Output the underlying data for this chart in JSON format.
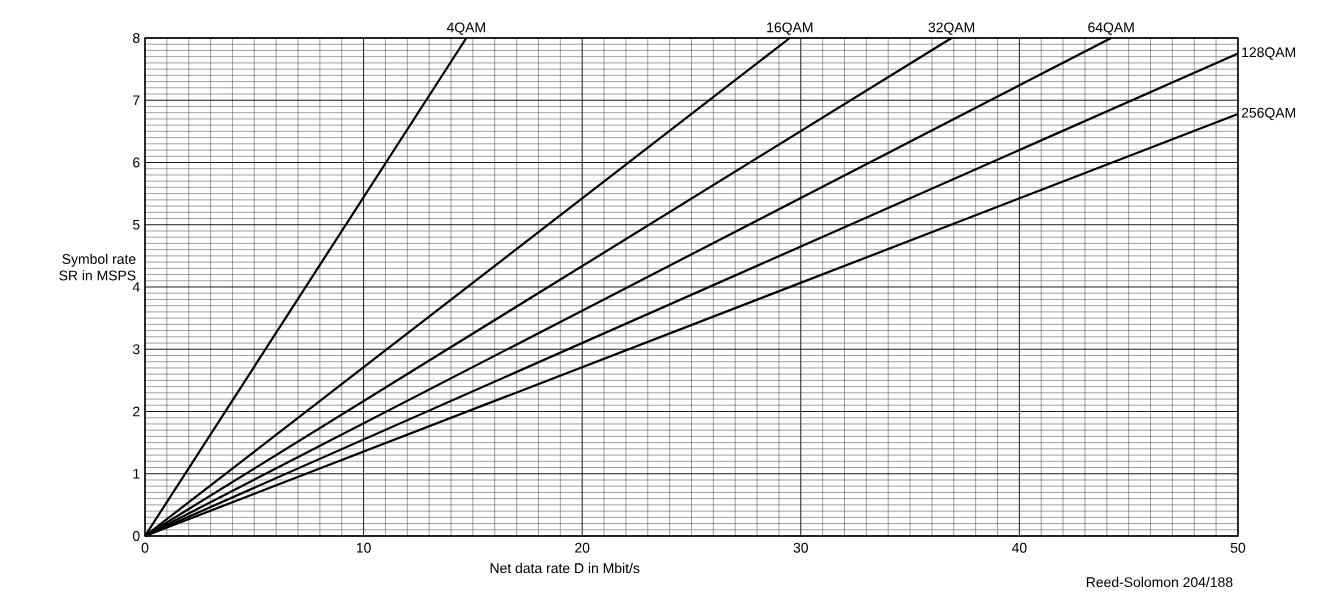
{
  "chart_data": {
    "type": "line",
    "xlabel": "Net data rate D in Mbit/s",
    "ylabel": "Symbol rate\nSR in MSPS",
    "xlim": [
      0,
      50
    ],
    "ylim": [
      0,
      8
    ],
    "xticks": [
      0,
      10,
      20,
      30,
      40,
      50
    ],
    "yticks": [
      0,
      1,
      2,
      3,
      4,
      5,
      6,
      7,
      8
    ],
    "grid": true,
    "marker": "none",
    "line_style": "solid",
    "series": [
      {
        "name": "4QAM",
        "color": "#000000",
        "x": [
          0,
          14.7
        ],
        "values": [
          0,
          8
        ]
      },
      {
        "name": "16QAM",
        "color": "#000000",
        "x": [
          0,
          29.5
        ],
        "values": [
          0,
          8
        ]
      },
      {
        "name": "32QAM",
        "color": "#000000",
        "x": [
          0,
          36.9
        ],
        "values": [
          0,
          8
        ]
      },
      {
        "name": "64QAM",
        "color": "#000000",
        "x": [
          0,
          44.2
        ],
        "values": [
          0,
          8
        ]
      },
      {
        "name": "128QAM",
        "color": "#000000",
        "x": [
          0,
          50
        ],
        "values": [
          0,
          7.75
        ]
      },
      {
        "name": "256QAM",
        "color": "#000000",
        "x": [
          0,
          50
        ],
        "values": [
          0,
          6.78
        ]
      }
    ],
    "annotations": [
      "Reed-Solomon 204/188"
    ]
  }
}
